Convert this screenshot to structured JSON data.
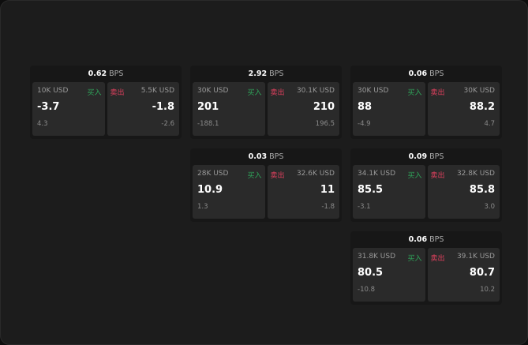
{
  "labels": {
    "buy": "买入",
    "sell": "卖出",
    "unit": "BPS"
  },
  "cards": [
    {
      "spread": "0.62",
      "buy_size": "10K USD",
      "buy_price": "-3.7",
      "buy_change": "4.3",
      "sell_size": "5.5K USD",
      "sell_price": "-1.8",
      "sell_change": "-2.6"
    },
    {
      "spread": "2.92",
      "buy_size": "30K USD",
      "buy_price": "201",
      "buy_change": "-188.1",
      "sell_size": "30.1K USD",
      "sell_price": "210",
      "sell_change": "196.5"
    },
    {
      "spread": "0.06",
      "buy_size": "30K USD",
      "buy_price": "88",
      "buy_change": "-4.9",
      "sell_size": "30K USD",
      "sell_price": "88.2",
      "sell_change": "4.7"
    },
    {
      "spread": "0.03",
      "buy_size": "28K USD",
      "buy_price": "10.9",
      "buy_change": "1.3",
      "sell_size": "32.6K USD",
      "sell_price": "11",
      "sell_change": "-1.8"
    },
    {
      "spread": "0.09",
      "buy_size": "34.1K USD",
      "buy_price": "85.5",
      "buy_change": "-3.1",
      "sell_size": "32.8K USD",
      "sell_price": "85.8",
      "sell_change": "3.0"
    },
    {
      "spread": "0.06",
      "buy_size": "31.8K USD",
      "buy_price": "80.5",
      "buy_change": "-10.8",
      "sell_size": "39.1K USD",
      "sell_price": "80.7",
      "sell_change": "10.2"
    }
  ]
}
